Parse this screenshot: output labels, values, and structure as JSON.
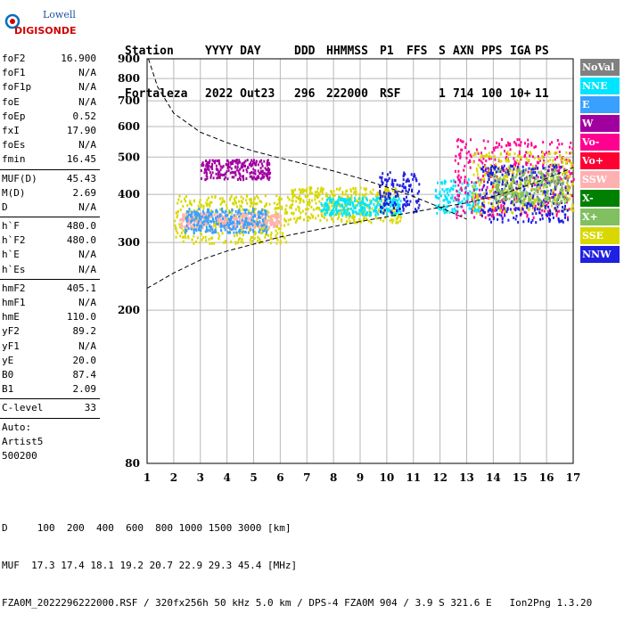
{
  "logo": {
    "line1": "Lowell",
    "line2": "DIGISONDE"
  },
  "header": {
    "columns": [
      {
        "label": "Station",
        "value": "Fortaleza"
      },
      {
        "label": "YYYY DAY",
        "value": "2022 Out23"
      },
      {
        "label": "DDD",
        "value": "296"
      },
      {
        "label": "HHMMSS",
        "value": "222000"
      },
      {
        "label": "P1",
        "value": "RSF"
      },
      {
        "label": "FFS",
        "value": ""
      },
      {
        "label": "S",
        "value": "1"
      },
      {
        "label": "AXN",
        "value": "714"
      },
      {
        "label": "PPS",
        "value": "100"
      },
      {
        "label": "IGA",
        "value": "10+"
      },
      {
        "label": "PS",
        "value": "11"
      }
    ]
  },
  "params": {
    "group1": [
      {
        "name": "foF2",
        "value": "16.900"
      },
      {
        "name": "foF1",
        "value": "N/A"
      },
      {
        "name": "foF1p",
        "value": "N/A"
      },
      {
        "name": "foE",
        "value": "N/A"
      },
      {
        "name": "foEp",
        "value": "0.52"
      },
      {
        "name": "fxI",
        "value": "17.90"
      },
      {
        "name": "foEs",
        "value": "N/A"
      },
      {
        "name": "fmin",
        "value": "16.45"
      }
    ],
    "group2": [
      {
        "name": "MUF(D)",
        "value": "45.43"
      },
      {
        "name": "M(D)",
        "value": "2.69"
      },
      {
        "name": "D",
        "value": "N/A"
      }
    ],
    "group3": [
      {
        "name": "h`F",
        "value": "480.0"
      },
      {
        "name": "h`F2",
        "value": "480.0"
      },
      {
        "name": "h`E",
        "value": "N/A"
      },
      {
        "name": "h`Es",
        "value": "N/A"
      }
    ],
    "group4": [
      {
        "name": "hmF2",
        "value": "405.1"
      },
      {
        "name": "hmF1",
        "value": "N/A"
      },
      {
        "name": "hmE",
        "value": "110.0"
      },
      {
        "name": "yF2",
        "value": "89.2"
      },
      {
        "name": "yF1",
        "value": "N/A"
      },
      {
        "name": "yE",
        "value": "20.0"
      },
      {
        "name": "B0",
        "value": "87.4"
      },
      {
        "name": "B1",
        "value": "2.09"
      }
    ],
    "group5": [
      {
        "name": "C-level",
        "value": "33"
      }
    ],
    "auto": [
      "Auto:",
      "Artist5",
      "500200"
    ]
  },
  "legend": [
    {
      "label": "NoVal",
      "color": "#808080"
    },
    {
      "label": "NNE",
      "color": "#00e5ff"
    },
    {
      "label": "E",
      "color": "#3aa0ff"
    },
    {
      "label": "W",
      "color": "#a000a0"
    },
    {
      "label": "Vo-",
      "color": "#ff0090"
    },
    {
      "label": "Vo+",
      "color": "#ff0033"
    },
    {
      "label": "SSW",
      "color": "#ffb0b0"
    },
    {
      "label": "X-",
      "color": "#008000"
    },
    {
      "label": "X+",
      "color": "#80c060"
    },
    {
      "label": "SSE",
      "color": "#d8d800"
    },
    {
      "label": "NNW",
      "color": "#2020e0"
    }
  ],
  "footer": {
    "d_row": "D     100  200  400  600  800 1000 1500 3000 [km]",
    "muf_row": "MUF  17.3 17.4 18.1 19.2 20.7 22.9 29.3 45.4 [MHz]",
    "file_row": "FZA0M_2022296222000.RSF / 320fx256h 50 kHz 5.0 km / DPS-4 FZA0M 904 / 3.9 S 321.6 E   Ion2Png 1.3.20"
  },
  "chart_data": {
    "type": "scatter",
    "title": "",
    "xlabel": "",
    "ylabel": "",
    "xlim": [
      1,
      17
    ],
    "ylim": [
      80,
      900
    ],
    "y_scale": "log",
    "x_ticks": [
      1,
      2,
      3,
      4,
      5,
      6,
      7,
      8,
      9,
      10,
      11,
      12,
      13,
      14,
      15,
      16,
      17
    ],
    "y_ticks": [
      80,
      200,
      300,
      400,
      500,
      600,
      700,
      800,
      900
    ],
    "grid": true,
    "upper_dashed_curve": {
      "x": [
        1.05,
        1.4,
        2,
        3,
        4,
        5,
        6,
        7,
        8,
        9,
        10,
        11,
        12,
        13
      ],
      "y": [
        900,
        760,
        650,
        580,
        545,
        518,
        497,
        478,
        460,
        440,
        418,
        395,
        370,
        345
      ]
    },
    "lower_dashed_curve": {
      "x": [
        1,
        2,
        3,
        4,
        5,
        6,
        7,
        8,
        9,
        10,
        11,
        12,
        13,
        14,
        15,
        16,
        17
      ],
      "y": [
        228,
        250,
        270,
        285,
        297,
        310,
        320,
        330,
        340,
        350,
        360,
        370,
        380,
        395,
        415,
        440,
        470
      ]
    },
    "echo_clusters": [
      {
        "freq": [
          2.0,
          6.3
        ],
        "height": [
          300,
          400
        ],
        "color": "#d8d800"
      },
      {
        "freq": [
          2.2,
          6.0
        ],
        "height": [
          330,
          360
        ],
        "color": "#ffb0b0"
      },
      {
        "freq": [
          2.4,
          5.5
        ],
        "height": [
          320,
          370
        ],
        "color": "#3aa0ff"
      },
      {
        "freq": [
          3.0,
          5.6
        ],
        "height": [
          440,
          495
        ],
        "color": "#a000a0"
      },
      {
        "freq": [
          6.3,
          10.5
        ],
        "height": [
          340,
          420
        ],
        "color": "#d8d800"
      },
      {
        "freq": [
          7.5,
          10.5
        ],
        "height": [
          355,
          395
        ],
        "color": "#00e5ff"
      },
      {
        "freq": [
          9.7,
          11.2
        ],
        "height": [
          360,
          460
        ],
        "color": "#2020e0"
      },
      {
        "freq": [
          11.8,
          13.5
        ],
        "height": [
          360,
          440
        ],
        "color": "#00e5ff"
      },
      {
        "freq": [
          12.5,
          17.0
        ],
        "height": [
          350,
          560
        ],
        "color": "#ff0090"
      },
      {
        "freq": [
          13.2,
          17.0
        ],
        "height": [
          360,
          520
        ],
        "color": "#d8d800"
      },
      {
        "freq": [
          13.5,
          16.8
        ],
        "height": [
          340,
          480
        ],
        "color": "#2020e0"
      },
      {
        "freq": [
          14.0,
          16.8
        ],
        "height": [
          380,
          470
        ],
        "color": "#80c060"
      }
    ]
  }
}
